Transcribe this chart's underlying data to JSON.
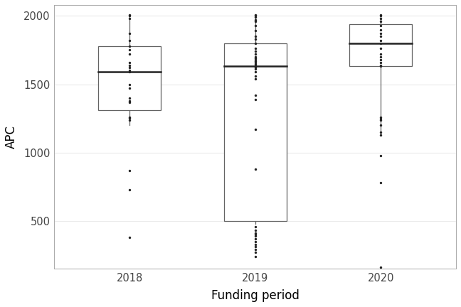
{
  "groups": [
    "2018",
    "2019",
    "2020"
  ],
  "box_stats": [
    {
      "label": "2018",
      "q1": 1310,
      "median": 1590,
      "q3": 1780,
      "whisker_low": 1200,
      "whisker_high": 2000,
      "dots": [
        380,
        730,
        870,
        1240,
        1255,
        1260,
        1370,
        1380,
        1400,
        1470,
        1500,
        1590,
        1600,
        1620,
        1640,
        1660,
        1720,
        1750,
        1780,
        1820,
        1870,
        1980,
        2000,
        2005
      ]
    },
    {
      "label": "2019",
      "q1": 500,
      "median": 1630,
      "q3": 1800,
      "whisker_low": 480,
      "whisker_high": 2000,
      "dots": [
        240,
        270,
        290,
        310,
        330,
        350,
        370,
        390,
        400,
        410,
        430,
        460,
        880,
        1170,
        1390,
        1420,
        1540,
        1560,
        1590,
        1610,
        1620,
        1630,
        1640,
        1650,
        1660,
        1670,
        1680,
        1690,
        1700,
        1720,
        1740,
        1760,
        1800,
        1830,
        1850,
        1890,
        1930,
        1960,
        1970,
        1990,
        2000,
        2005
      ]
    },
    {
      "label": "2020",
      "q1": 1630,
      "median": 1800,
      "q3": 1940,
      "whisker_low": 1130,
      "whisker_high": 2000,
      "dots": [
        160,
        780,
        980,
        1130,
        1150,
        1200,
        1240,
        1250,
        1260,
        1630,
        1640,
        1660,
        1680,
        1700,
        1720,
        1760,
        1800,
        1820,
        1850,
        1870,
        1900,
        1930,
        1960,
        1980,
        2000,
        2005
      ]
    }
  ],
  "ylim": [
    150,
    2080
  ],
  "yticks": [
    500,
    1000,
    1500,
    2000
  ],
  "xlabel": "Funding period",
  "ylabel": "APC",
  "bg_color": "#ffffff",
  "grid_color": "#ebebeb",
  "box_color": "#ffffff",
  "box_edge_color": "#636363",
  "median_color": "#222222",
  "whisker_color": "#636363",
  "dot_color": "#222222",
  "dot_size": 6,
  "box_width": 0.5,
  "linewidth": 0.9
}
